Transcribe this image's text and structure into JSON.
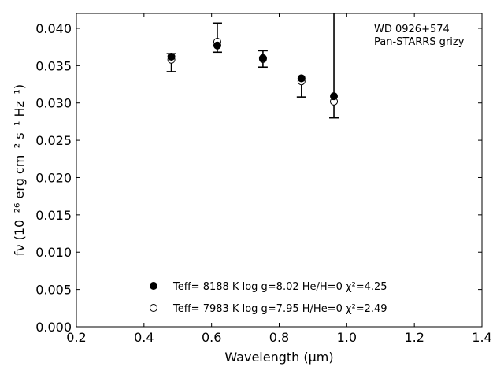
{
  "chart_data": {
    "type": "scatter",
    "title": "",
    "xlabel": "Wavelength (μm)",
    "ylabel": "fν (10⁻²⁶ erg cm⁻² s⁻¹ Hz⁻¹)",
    "xlim": [
      0.2,
      1.4
    ],
    "ylim": [
      0.0,
      0.042
    ],
    "xticks": [
      "0.2",
      "0.4",
      "0.6",
      "0.8",
      "1.0",
      "1.2",
      "1.4"
    ],
    "yticks": [
      "0.000",
      "0.005",
      "0.010",
      "0.015",
      "0.020",
      "0.025",
      "0.030",
      "0.035",
      "0.040"
    ],
    "grid": false,
    "legend_position": "bottom-center",
    "annotations": [
      "WD 0926+574",
      "Pan-STARRS grizy"
    ],
    "series": [
      {
        "name": "Teff=  8188 K  log g=8.02  He/H=0  χ²=4.25",
        "marker": "filled-circle",
        "x": [
          0.481,
          0.617,
          0.752,
          0.866,
          0.962
        ],
        "y": [
          0.0362,
          0.0377,
          0.036,
          0.0333,
          0.0309
        ]
      },
      {
        "name": "Teff=  7983 K  log g=7.95  H/He=0  χ²=2.49",
        "marker": "open-circle",
        "x": [
          0.481,
          0.617,
          0.752,
          0.866,
          0.962
        ],
        "y": [
          0.0358,
          0.0382,
          0.0359,
          0.0329,
          0.0302
        ]
      }
    ],
    "observed": {
      "marker": "errorbar",
      "x": [
        0.481,
        0.617,
        0.752,
        0.866,
        0.962
      ],
      "y": [
        0.0354,
        0.0383,
        0.0359,
        0.0338,
        0.0298
      ],
      "yerr_low": [
        0.0012,
        0.0015,
        0.0011,
        0.003,
        0.0018
      ],
      "yerr_high": [
        0.0012,
        0.0024,
        0.0011,
        0.0,
        0.0125
      ]
    },
    "colors": {
      "markers": "#000000",
      "errorbars": "#000000"
    }
  }
}
